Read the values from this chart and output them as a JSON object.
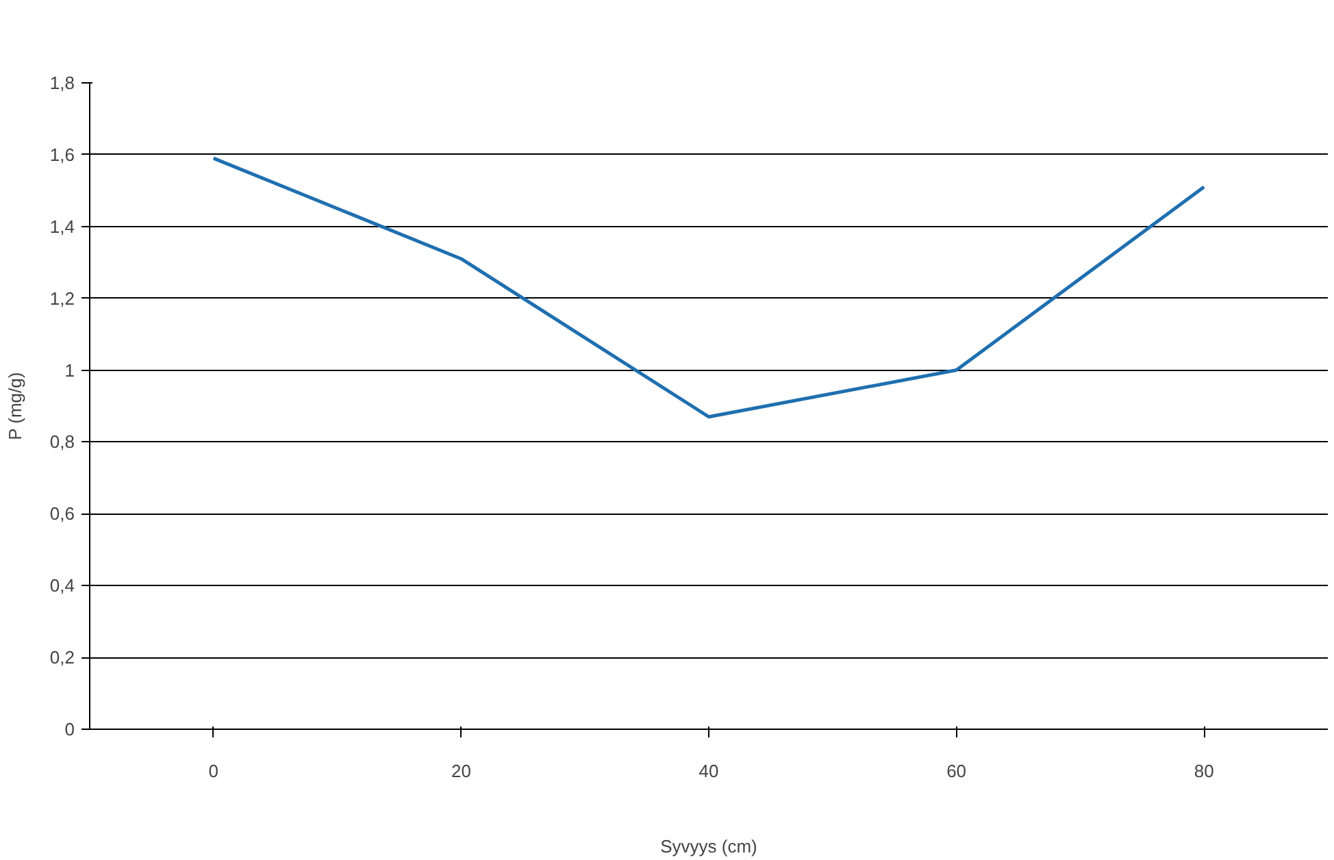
{
  "chart_data": {
    "type": "line",
    "xlabel": "Syvyys (cm)",
    "ylabel": "P (mg/g)",
    "categories": [
      "0",
      "20",
      "40",
      "60",
      "80"
    ],
    "series": [
      {
        "color": "#1f6fb0",
        "values": [
          1.59,
          1.31,
          0.87,
          1.0,
          1.51
        ]
      }
    ],
    "ylim": [
      0,
      1.8
    ],
    "yticks": [
      0,
      {
        "value": 0.2,
        "label": "0,2"
      },
      {
        "value": 0.4,
        "label": "0,4"
      },
      {
        "value": 0.6,
        "label": "0,6"
      },
      {
        "value": 0.8,
        "label": "0,8"
      },
      1,
      {
        "value": 1.2,
        "label": "1,2"
      },
      {
        "value": 1.4,
        "label": "1,4"
      },
      {
        "value": 1.6,
        "label": "1,6"
      },
      {
        "value": 1.8,
        "label": "1,8"
      }
    ],
    "grid": "y",
    "marker": "none",
    "line_style": "solid"
  }
}
